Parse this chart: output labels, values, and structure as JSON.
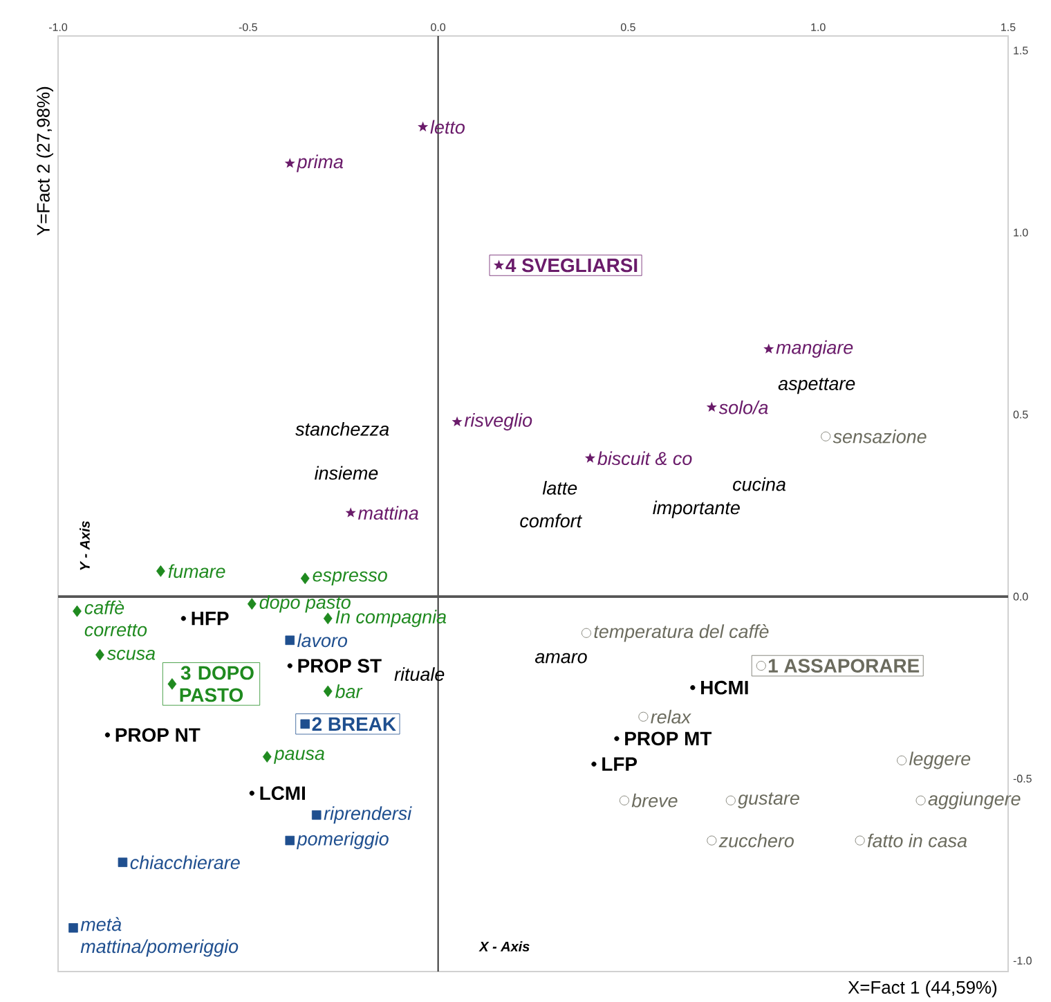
{
  "chart_data": {
    "type": "scatter",
    "xlabel": "X=Fact 1 (44,59%)",
    "ylabel": "Y=Fact 2 (27,98%)",
    "xlim": [
      -1.0,
      1.5
    ],
    "ylim": [
      -1.03,
      1.54
    ],
    "xticks": [
      {
        "value": -1.0,
        "label": "-1.0"
      },
      {
        "value": -0.5,
        "label": "-0.5"
      },
      {
        "value": 0,
        "label": "0.0"
      },
      {
        "value": 0.5,
        "label": "0.5"
      },
      {
        "value": 1.0,
        "label": "1.0"
      },
      {
        "value": 1.5,
        "label": "1.5"
      }
    ],
    "yticks": [
      {
        "value": -1.0,
        "label": "-1.0"
      },
      {
        "value": -0.5,
        "label": "-0.5"
      },
      {
        "value": 0,
        "label": "0.0"
      },
      {
        "value": 0.5,
        "label": "0.5"
      },
      {
        "value": 1.0,
        "label": "1.0"
      },
      {
        "value": 1.5,
        "label": "1.5"
      }
    ],
    "ref_lines": [
      {
        "axis": "x",
        "value": 0,
        "color": "#202020"
      },
      {
        "axis": "y",
        "value": 0,
        "color": "#555555"
      }
    ],
    "series": [
      {
        "color": "#6a1b6a",
        "marker": "star",
        "x": [
          -0.04,
          -0.39,
          0.05,
          0.87,
          0.72,
          0.4,
          -0.23
        ],
        "values": [
          1.29,
          1.19,
          0.48,
          0.68,
          0.52,
          0.38,
          0.23
        ]
      },
      {
        "name": "4 SVEGLIARSI",
        "color": "#6a1b6a",
        "marker": "star",
        "x": [
          0.16
        ],
        "values": [
          0.91
        ]
      },
      {
        "color": "#1f8a1f",
        "marker": "diamond",
        "x": [
          -0.73,
          -0.35,
          -0.49,
          -0.95,
          -0.29,
          -0.89,
          -0.29,
          -0.45
        ],
        "values": [
          0.07,
          0.05,
          -0.02,
          -0.04,
          -0.06,
          -0.16,
          -0.26,
          -0.44
        ]
      },
      {
        "name": "3 DOPO PASTO",
        "color": "#1f8a1f",
        "marker": "diamond",
        "x": [
          -0.7
        ],
        "values": [
          -0.24
        ]
      },
      {
        "color": "#1f4f8f",
        "marker": "square",
        "x": [
          -0.39,
          -0.32,
          -0.39,
          -0.83,
          -0.96
        ],
        "values": [
          -0.12,
          -0.6,
          -0.67,
          -0.73,
          -0.91
        ]
      },
      {
        "name": "2 BREAK",
        "color": "#1f4f8f",
        "marker": "square",
        "x": [
          -0.35
        ],
        "values": [
          -0.35
        ]
      },
      {
        "color": "#6b6b5e",
        "marker": "circle",
        "x": [
          0.39,
          0.54,
          1.22,
          0.49,
          0.77,
          1.27,
          0.72,
          1.11,
          1.02
        ],
        "values": [
          -0.1,
          -0.33,
          -0.45,
          -0.56,
          -0.56,
          -0.56,
          -0.67,
          -0.67,
          0.44
        ]
      },
      {
        "name": "1 ASSAPORARE",
        "color": "#6b6b5e",
        "marker": "circle",
        "x": [
          0.85
        ],
        "values": [
          -0.19
        ]
      },
      {
        "color": "#000000",
        "marker": "circle",
        "x": [
          -0.67,
          -0.39,
          -0.87,
          -0.49,
          0.67,
          0.47,
          0.41
        ],
        "values": [
          -0.06,
          -0.19,
          -0.38,
          -0.54,
          -0.25,
          -0.39,
          -0.46
        ]
      }
    ],
    "annotations": [
      {
        "text": "letto",
        "x": -0.04,
        "y": 1.29
      },
      {
        "text": "prima",
        "x": -0.39,
        "y": 1.19
      },
      {
        "text": "risveglio",
        "x": 0.05,
        "y": 0.48
      },
      {
        "text": "mangiare",
        "x": 0.87,
        "y": 0.68
      },
      {
        "text": "solo/a",
        "x": 0.72,
        "y": 0.52
      },
      {
        "text": "biscuit & co",
        "x": 0.4,
        "y": 0.38
      },
      {
        "text": "mattina",
        "x": -0.23,
        "y": 0.23
      },
      {
        "text": "fumare",
        "x": -0.73,
        "y": 0.07
      },
      {
        "text": "espresso",
        "x": -0.35,
        "y": 0.05
      },
      {
        "text": "dopo pasto",
        "x": -0.49,
        "y": -0.02
      },
      {
        "text": "caffè corretto",
        "x": -0.95,
        "y": -0.04
      },
      {
        "text": "In compagnia",
        "x": -0.29,
        "y": -0.06
      },
      {
        "text": "scusa",
        "x": -0.89,
        "y": -0.16
      },
      {
        "text": "bar",
        "x": -0.29,
        "y": -0.26
      },
      {
        "text": "pausa",
        "x": -0.45,
        "y": -0.44
      },
      {
        "text": "lavoro",
        "x": -0.39,
        "y": -0.12
      },
      {
        "text": "riprendersi",
        "x": -0.32,
        "y": -0.6
      },
      {
        "text": "pomeriggio",
        "x": -0.39,
        "y": -0.67
      },
      {
        "text": "chiacchierare",
        "x": -0.83,
        "y": -0.73
      },
      {
        "text": "metà mattina/pomeriggio",
        "x": -0.96,
        "y": -0.91
      },
      {
        "text": "temperatura del caffè",
        "x": 0.39,
        "y": -0.1
      },
      {
        "text": "relax",
        "x": 0.54,
        "y": -0.33
      },
      {
        "text": "leggere",
        "x": 1.22,
        "y": -0.45
      },
      {
        "text": "breve",
        "x": 0.49,
        "y": -0.56
      },
      {
        "text": "gustare",
        "x": 0.77,
        "y": -0.56
      },
      {
        "text": "aggiungere",
        "x": 1.27,
        "y": -0.56
      },
      {
        "text": "zucchero",
        "x": 0.72,
        "y": -0.67
      },
      {
        "text": "fatto in casa",
        "x": 1.11,
        "y": -0.67
      },
      {
        "text": "sensazione",
        "x": 1.02,
        "y": 0.44
      },
      {
        "text": "HFP",
        "x": -0.67,
        "y": -0.06
      },
      {
        "text": "PROP ST",
        "x": -0.39,
        "y": -0.19
      },
      {
        "text": "PROP NT",
        "x": -0.87,
        "y": -0.38
      },
      {
        "text": "LCMI",
        "x": -0.49,
        "y": -0.54
      },
      {
        "text": "HCMI",
        "x": 0.67,
        "y": -0.25
      },
      {
        "text": "PROP MT",
        "x": 0.47,
        "y": -0.39
      },
      {
        "text": "LFP",
        "x": 0.41,
        "y": -0.46
      },
      "stanchezza",
      "insieme",
      "aspettare",
      "latte",
      "cucina",
      "comfort",
      "importante",
      "rituale",
      "amaro",
      "X - Axis",
      "Y - Axis"
    ]
  }
}
